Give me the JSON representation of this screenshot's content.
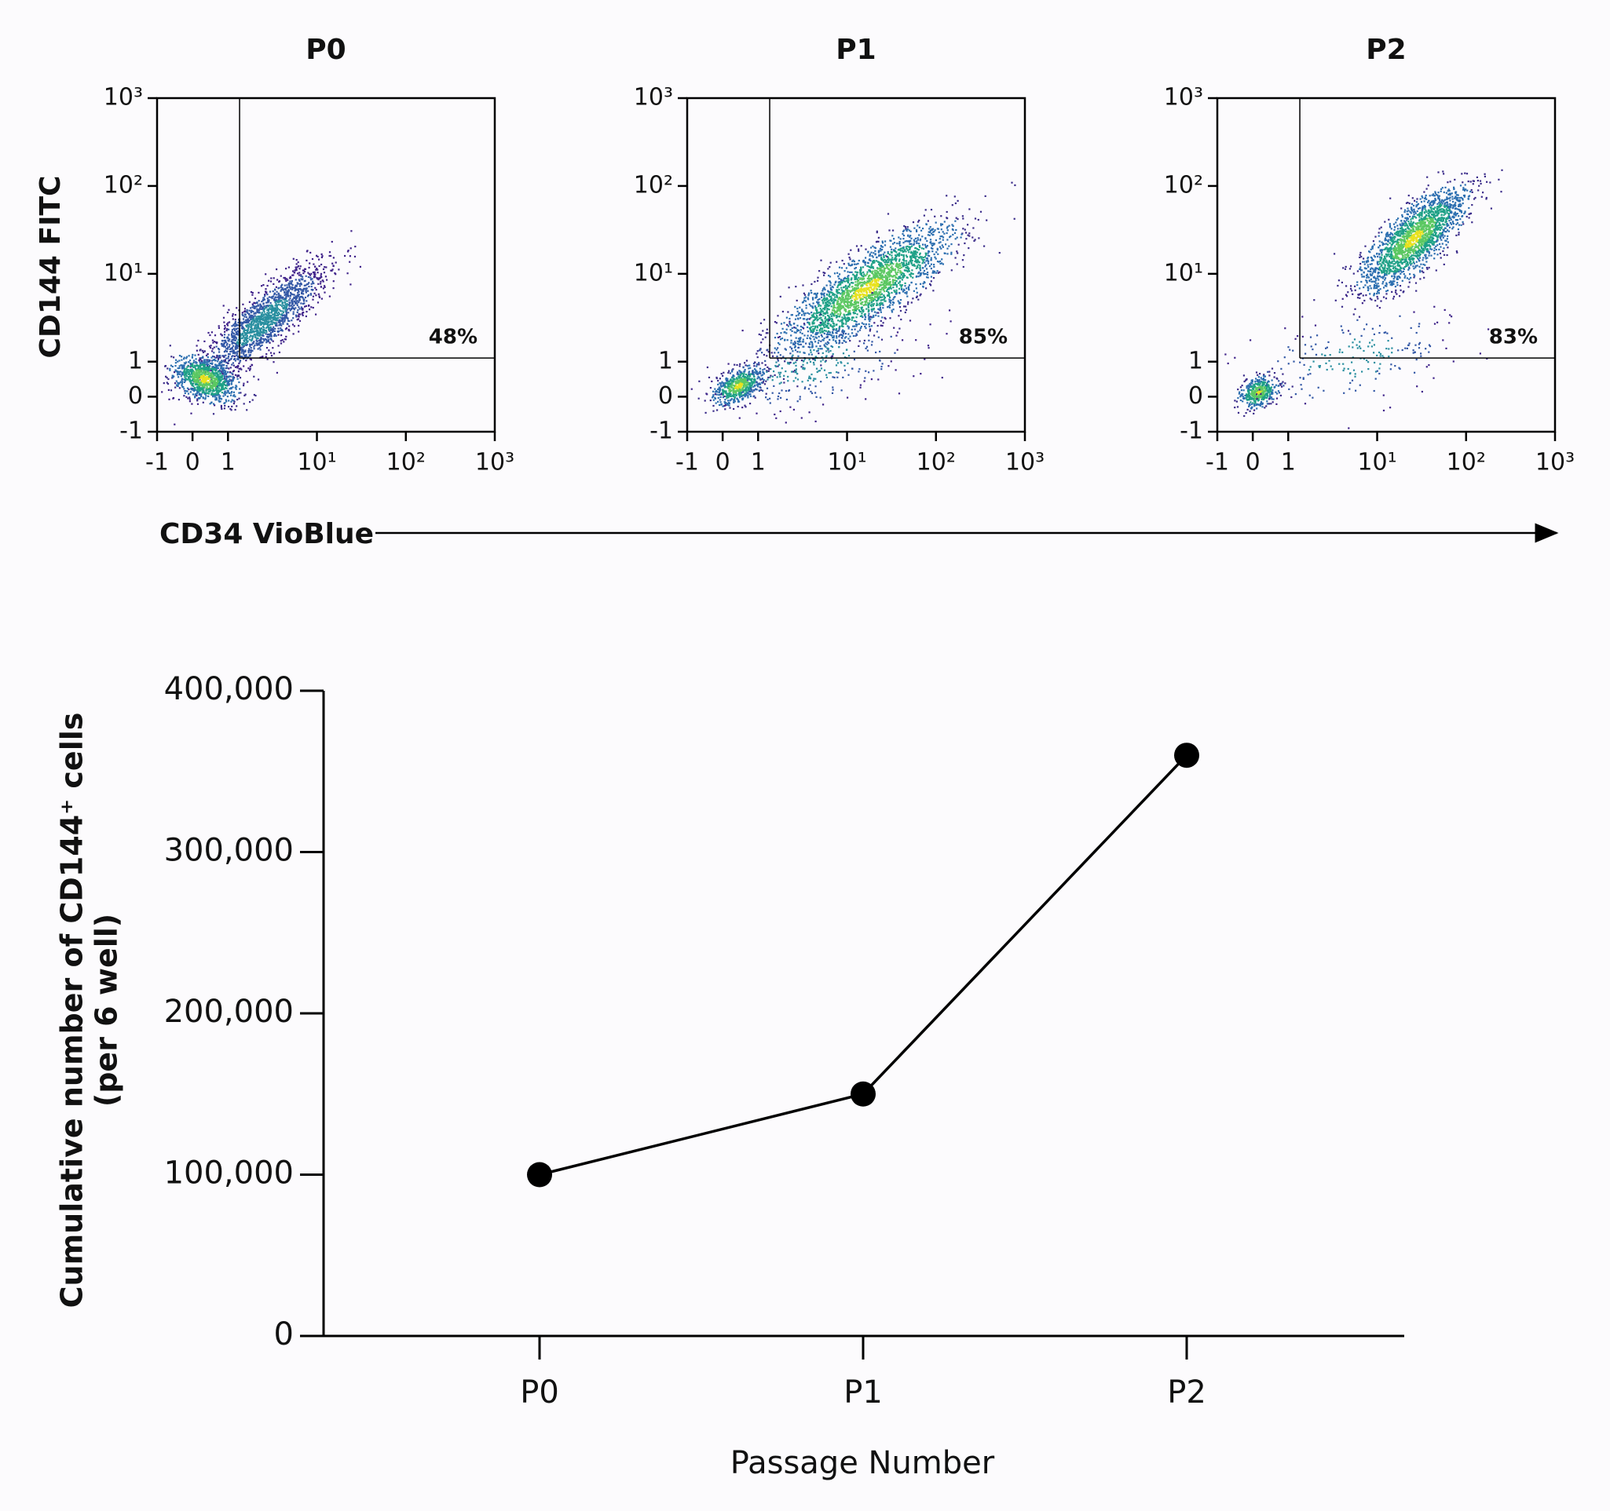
{
  "chart_data": [
    {
      "type": "density",
      "title": "P0",
      "x_label": "CD34 VioBlue",
      "y_label": "CD144 FITC",
      "scale": "biexponential",
      "xlim": [
        -1,
        1000
      ],
      "ylim": [
        -1,
        1000
      ],
      "xticks": [
        -1,
        0,
        1,
        {
          "value": 10,
          "label": "10¹"
        },
        {
          "value": 100,
          "label": "10²"
        },
        {
          "value": 1000,
          "label": "10³"
        }
      ],
      "yticks": [
        -1,
        0,
        1,
        {
          "value": 10,
          "label": "10¹"
        },
        {
          "value": 100,
          "label": "10²"
        },
        {
          "value": 1000,
          "label": "10³"
        }
      ],
      "gate": {
        "x": 1.35,
        "y": 1.1
      },
      "annotation": "48%"
    },
    {
      "type": "density",
      "title": "P1",
      "scale": "biexponential",
      "xlim": [
        -1,
        1000
      ],
      "ylim": [
        -1,
        1000
      ],
      "xticks": [
        -1,
        0,
        1,
        {
          "value": 10,
          "label": "10¹"
        },
        {
          "value": 100,
          "label": "10²"
        },
        {
          "value": 1000,
          "label": "10³"
        }
      ],
      "yticks": [
        -1,
        0,
        1,
        {
          "value": 10,
          "label": "10¹"
        },
        {
          "value": 100,
          "label": "10²"
        },
        {
          "value": 1000,
          "label": "10³"
        }
      ],
      "gate": {
        "x": 1.35,
        "y": 1.1
      },
      "annotation": "85%"
    },
    {
      "type": "density",
      "title": "P2",
      "scale": "biexponential",
      "xlim": [
        -1,
        1000
      ],
      "ylim": [
        -1,
        1000
      ],
      "xticks": [
        -1,
        0,
        1,
        {
          "value": 10,
          "label": "10¹"
        },
        {
          "value": 100,
          "label": "10²"
        },
        {
          "value": 1000,
          "label": "10³"
        }
      ],
      "yticks": [
        -1,
        0,
        1,
        {
          "value": 10,
          "label": "10¹"
        },
        {
          "value": 100,
          "label": "10²"
        },
        {
          "value": 1000,
          "label": "10³"
        }
      ],
      "gate": {
        "x": 1.35,
        "y": 1.1
      },
      "annotation": "83%"
    },
    {
      "type": "line",
      "y_label": [
        "Cumulative number of CD144⁺ cells",
        "(per 6 well)"
      ],
      "x_label": "Passage Number",
      "categories": [
        "P0",
        "P1",
        "P2"
      ],
      "values": [
        100000,
        150000,
        360000
      ],
      "color": "#000000",
      "ylim": [
        0,
        400000
      ],
      "yticks": [
        0,
        {
          "value": 100000,
          "label": "100,000"
        },
        {
          "value": 200000,
          "label": "200,000"
        },
        {
          "value": 300000,
          "label": "300,000"
        },
        {
          "value": 400000,
          "label": "400,000"
        }
      ]
    }
  ]
}
